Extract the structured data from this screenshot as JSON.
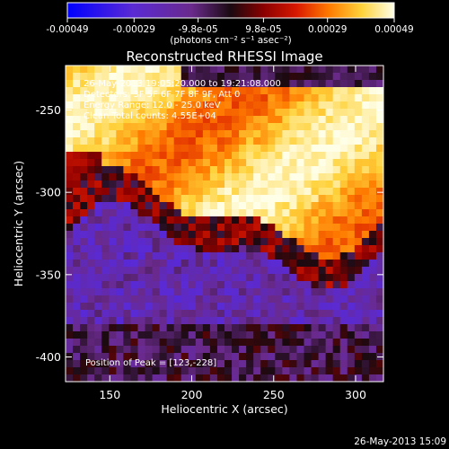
{
  "colorbar": {
    "tick_labels": [
      "-0.00049",
      "-0.00029",
      "-9.8e-05",
      "9.8e-05",
      "0.00029",
      "0.00049"
    ],
    "tick_values": [
      -0.00049,
      -0.00029,
      -9.8e-05,
      9.8e-05,
      0.00029,
      0.00049
    ],
    "range": [
      -0.00049,
      0.00049
    ],
    "units_label": "(photons cm⁻² s⁻¹ asec⁻²)",
    "colors": [
      "#0000ff",
      "#5a2ad4",
      "#6a2a8c",
      "#1a0a10",
      "#8a0000",
      "#d81800",
      "#ff7a00",
      "#ffd23a",
      "#ffffe8"
    ]
  },
  "title": "Reconstructed RHESSI Image",
  "annotations": {
    "time": "26-May-2013 19:05:20.000 to 19:21:08.000",
    "detectors": "Detectors: 3F 5F 6F 7F 8F 9F, Att 0",
    "energy": "Energy Range: 12.0 - 25.0 keV",
    "method": "Clean    Total counts: 4.55E+04",
    "peak": "Position of Peak = [123,-228]"
  },
  "timestamp": "26-May-2013 15:09",
  "chart_data": {
    "type": "heatmap",
    "title": "Reconstructed RHESSI Image",
    "xlabel": "Heliocentric X (arcsec)",
    "ylabel": "Heliocentric Y (arcsec)",
    "xlim": [
      123,
      317
    ],
    "ylim": [
      -415,
      -223
    ],
    "xticks": [
      150,
      200,
      250,
      300
    ],
    "yticks": [
      -250,
      -300,
      -350,
      -400
    ],
    "xtick_labels": [
      "150",
      "200",
      "250",
      "300"
    ],
    "ytick_labels": [
      "-250",
      "-300",
      "-350",
      "-400"
    ],
    "value_range": [
      -0.00049,
      0.00049
    ],
    "peak_position": [
      123,
      -228
    ],
    "bands": [
      {
        "region": "upper bright band",
        "approx_y_range": [
          -325,
          -228
        ],
        "value_level": "0.00029 to 0.00049"
      },
      {
        "region": "lower negative band",
        "approx_y_range": [
          -415,
          -335
        ],
        "value_level": "-0.00049 to -9.8e-05"
      }
    ]
  }
}
